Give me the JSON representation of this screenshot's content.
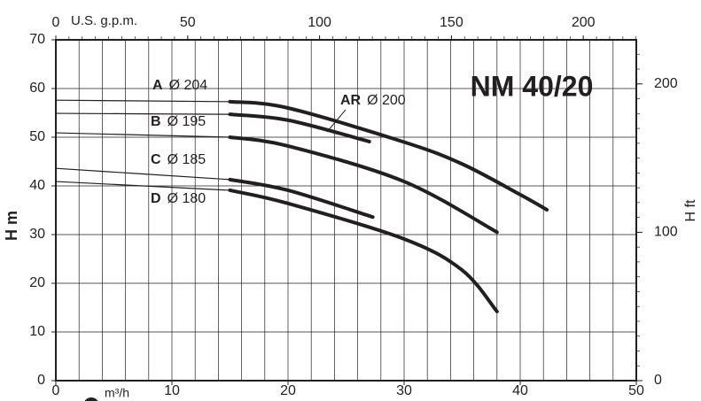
{
  "chart_data": {
    "type": "line",
    "title": "NM 40/20",
    "xlabel": "m³/h",
    "ylabel": "H m",
    "x2label": "U.S. g.p.m.",
    "y2label": "H ft",
    "xlim": [
      0,
      50
    ],
    "xticks": [
      0,
      10,
      20,
      30,
      40,
      50
    ],
    "x_grid": [
      2,
      4,
      6,
      8,
      10,
      12,
      14,
      16,
      18,
      20,
      22,
      24,
      26,
      28,
      30,
      32,
      34,
      36,
      38,
      40,
      42,
      44,
      46,
      48
    ],
    "ylim": [
      0,
      70
    ],
    "yticks": [
      0,
      10,
      20,
      30,
      40,
      50,
      60,
      70
    ],
    "x2lim": [
      0,
      220.1
    ],
    "x2ticks": [
      0,
      50,
      100,
      150,
      200
    ],
    "y2lim": [
      0,
      229.7
    ],
    "y2ticks": [
      0,
      100,
      200
    ],
    "grid": true,
    "bold_from_x": 15,
    "series": [
      {
        "name": "A",
        "diameter": "Ø 204",
        "color": "#231f20",
        "x": [
          0,
          15,
          20,
          30,
          35,
          40,
          42.3
        ],
        "values": [
          57.6,
          57.3,
          56,
          49,
          44.5,
          38.2,
          35.1
        ]
      },
      {
        "name": "AR",
        "diameter": "Ø 200",
        "color": "#231f20",
        "x": [
          0,
          15,
          20,
          27
        ],
        "values": [
          54.9,
          54.7,
          53.5,
          49.1
        ]
      },
      {
        "name": "B",
        "diameter": "Ø 195",
        "color": "#231f20",
        "x": [
          0,
          15,
          20,
          30,
          38
        ],
        "values": [
          50.9,
          50,
          48.2,
          40.9,
          30.5
        ]
      },
      {
        "name": "C",
        "diameter": "Ø 185",
        "color": "#231f20",
        "x": [
          0,
          15,
          20,
          27.3
        ],
        "values": [
          43.6,
          41.3,
          39.1,
          33.6
        ]
      },
      {
        "name": "D",
        "diameter": "Ø 180",
        "color": "#231f20",
        "x": [
          0,
          15,
          20,
          30,
          35,
          38
        ],
        "values": [
          40.9,
          39.1,
          36.4,
          29.1,
          22.7,
          14.2
        ]
      }
    ]
  }
}
